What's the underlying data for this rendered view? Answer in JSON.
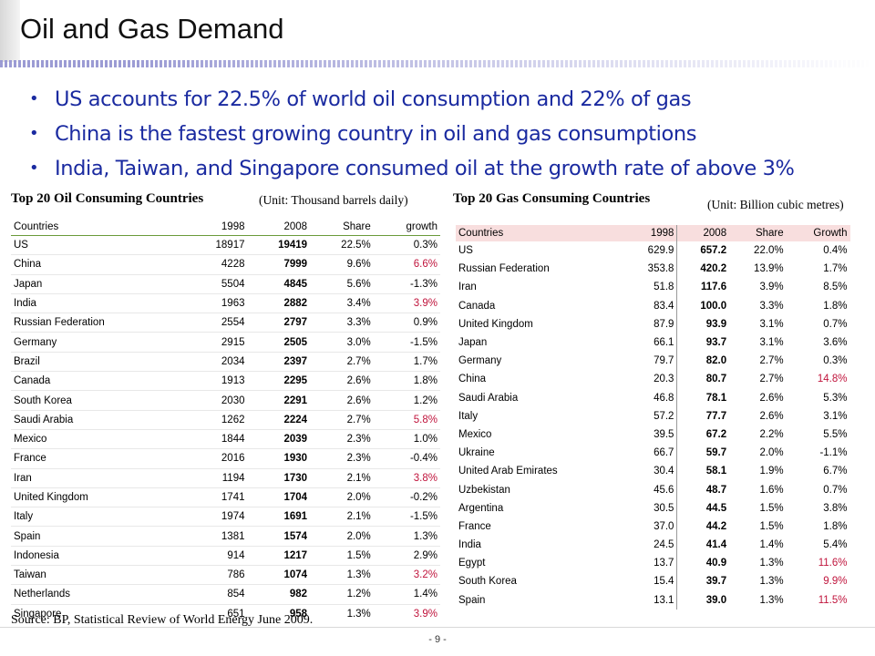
{
  "title": "Oil and Gas Demand",
  "bullets": [
    "US accounts for 22.5% of world oil consumption and 22% of gas",
    "China is the fastest growing country in oil and gas consumptions",
    "India, Taiwan, and Singapore consumed oil at the growth rate of above 3%"
  ],
  "oil": {
    "title": "Top 20 Oil Consuming Countries",
    "unit": "(Unit: Thousand barrels daily)",
    "headers": [
      "Countries",
      "1998",
      "2008",
      "Share",
      "growth"
    ],
    "highlight_color": "#c0143c",
    "rows": [
      {
        "country": "US",
        "y1998": "18917",
        "y2008": "19419",
        "share": "22.5%",
        "growth": "0.3%",
        "highlight": false
      },
      {
        "country": "China",
        "y1998": "4228",
        "y2008": "7999",
        "share": "9.6%",
        "growth": "6.6%",
        "highlight": true
      },
      {
        "country": "Japan",
        "y1998": "5504",
        "y2008": "4845",
        "share": "5.6%",
        "growth": "-1.3%",
        "highlight": false
      },
      {
        "country": "India",
        "y1998": "1963",
        "y2008": "2882",
        "share": "3.4%",
        "growth": "3.9%",
        "highlight": true
      },
      {
        "country": "Russian Federation",
        "y1998": "2554",
        "y2008": "2797",
        "share": "3.3%",
        "growth": "0.9%",
        "highlight": false
      },
      {
        "country": "Germany",
        "y1998": "2915",
        "y2008": "2505",
        "share": "3.0%",
        "growth": "-1.5%",
        "highlight": false
      },
      {
        "country": "Brazil",
        "y1998": "2034",
        "y2008": "2397",
        "share": "2.7%",
        "growth": "1.7%",
        "highlight": false
      },
      {
        "country": "Canada",
        "y1998": "1913",
        "y2008": "2295",
        "share": "2.6%",
        "growth": "1.8%",
        "highlight": false
      },
      {
        "country": "South Korea",
        "y1998": "2030",
        "y2008": "2291",
        "share": "2.6%",
        "growth": "1.2%",
        "highlight": false
      },
      {
        "country": "Saudi Arabia",
        "y1998": "1262",
        "y2008": "2224",
        "share": "2.7%",
        "growth": "5.8%",
        "highlight": true
      },
      {
        "country": "Mexico",
        "y1998": "1844",
        "y2008": "2039",
        "share": "2.3%",
        "growth": "1.0%",
        "highlight": false
      },
      {
        "country": "France",
        "y1998": "2016",
        "y2008": "1930",
        "share": "2.3%",
        "growth": "-0.4%",
        "highlight": false
      },
      {
        "country": "Iran",
        "y1998": "1194",
        "y2008": "1730",
        "share": "2.1%",
        "growth": "3.8%",
        "highlight": true
      },
      {
        "country": "United Kingdom",
        "y1998": "1741",
        "y2008": "1704",
        "share": "2.0%",
        "growth": "-0.2%",
        "highlight": false
      },
      {
        "country": "Italy",
        "y1998": "1974",
        "y2008": "1691",
        "share": "2.1%",
        "growth": "-1.5%",
        "highlight": false
      },
      {
        "country": "Spain",
        "y1998": "1381",
        "y2008": "1574",
        "share": "2.0%",
        "growth": "1.3%",
        "highlight": false
      },
      {
        "country": "Indonesia",
        "y1998": "914",
        "y2008": "1217",
        "share": "1.5%",
        "growth": "2.9%",
        "highlight": false
      },
      {
        "country": "Taiwan",
        "y1998": "786",
        "y2008": "1074",
        "share": "1.3%",
        "growth": "3.2%",
        "highlight": true
      },
      {
        "country": "Netherlands",
        "y1998": "854",
        "y2008": "982",
        "share": "1.2%",
        "growth": "1.4%",
        "highlight": false
      },
      {
        "country": "Singapore",
        "y1998": "651",
        "y2008": "958",
        "share": "1.3%",
        "growth": "3.9%",
        "highlight": true
      }
    ]
  },
  "gas": {
    "title": "Top 20 Gas Consuming Countries",
    "unit": "(Unit: Billion cubic metres)",
    "headers": [
      "Countries",
      "1998",
      "2008",
      "Share",
      "Growth"
    ],
    "header_bg": "#f8dede",
    "highlight_color": "#c0143c",
    "rows": [
      {
        "country": "US",
        "y1998": "629.9",
        "y2008": "657.2",
        "share": "22.0%",
        "growth": "0.4%",
        "highlight": false
      },
      {
        "country": "Russian Federation",
        "y1998": "353.8",
        "y2008": "420.2",
        "share": "13.9%",
        "growth": "1.7%",
        "highlight": false
      },
      {
        "country": "Iran",
        "y1998": "51.8",
        "y2008": "117.6",
        "share": "3.9%",
        "growth": "8.5%",
        "highlight": false
      },
      {
        "country": "Canada",
        "y1998": "83.4",
        "y2008": "100.0",
        "share": "3.3%",
        "growth": "1.8%",
        "highlight": false
      },
      {
        "country": "United Kingdom",
        "y1998": "87.9",
        "y2008": "93.9",
        "share": "3.1%",
        "growth": "0.7%",
        "highlight": false
      },
      {
        "country": "Japan",
        "y1998": "66.1",
        "y2008": "93.7",
        "share": "3.1%",
        "growth": "3.6%",
        "highlight": false
      },
      {
        "country": "Germany",
        "y1998": "79.7",
        "y2008": "82.0",
        "share": "2.7%",
        "growth": "0.3%",
        "highlight": false
      },
      {
        "country": "China",
        "y1998": "20.3",
        "y2008": "80.7",
        "share": "2.7%",
        "growth": "14.8%",
        "highlight": true
      },
      {
        "country": "Saudi Arabia",
        "y1998": "46.8",
        "y2008": "78.1",
        "share": "2.6%",
        "growth": "5.3%",
        "highlight": false
      },
      {
        "country": "Italy",
        "y1998": "57.2",
        "y2008": "77.7",
        "share": "2.6%",
        "growth": "3.1%",
        "highlight": false
      },
      {
        "country": "Mexico",
        "y1998": "39.5",
        "y2008": "67.2",
        "share": "2.2%",
        "growth": "5.5%",
        "highlight": false
      },
      {
        "country": "Ukraine",
        "y1998": "66.7",
        "y2008": "59.7",
        "share": "2.0%",
        "growth": "-1.1%",
        "highlight": false
      },
      {
        "country": "United Arab Emirates",
        "y1998": "30.4",
        "y2008": "58.1",
        "share": "1.9%",
        "growth": "6.7%",
        "highlight": false
      },
      {
        "country": "Uzbekistan",
        "y1998": "45.6",
        "y2008": "48.7",
        "share": "1.6%",
        "growth": "0.7%",
        "highlight": false
      },
      {
        "country": "Argentina",
        "y1998": "30.5",
        "y2008": "44.5",
        "share": "1.5%",
        "growth": "3.8%",
        "highlight": false
      },
      {
        "country": "France",
        "y1998": "37.0",
        "y2008": "44.2",
        "share": "1.5%",
        "growth": "1.8%",
        "highlight": false
      },
      {
        "country": "India",
        "y1998": "24.5",
        "y2008": "41.4",
        "share": "1.4%",
        "growth": "5.4%",
        "highlight": false
      },
      {
        "country": "Egypt",
        "y1998": "13.7",
        "y2008": "40.9",
        "share": "1.3%",
        "growth": "11.6%",
        "highlight": true
      },
      {
        "country": "South Korea",
        "y1998": "15.4",
        "y2008": "39.7",
        "share": "1.3%",
        "growth": "9.9%",
        "highlight": true
      },
      {
        "country": "Spain",
        "y1998": "13.1",
        "y2008": "39.0",
        "share": "1.3%",
        "growth": "11.5%",
        "highlight": true
      }
    ]
  },
  "source": "Source: BP, Statistical Review of World Energy June 2009.",
  "page_number": "- 9 -",
  "colors": {
    "bullet_text": "#1a2aa0",
    "highlight": "#c0143c",
    "oil_header_rule": "#6a9a3a"
  }
}
